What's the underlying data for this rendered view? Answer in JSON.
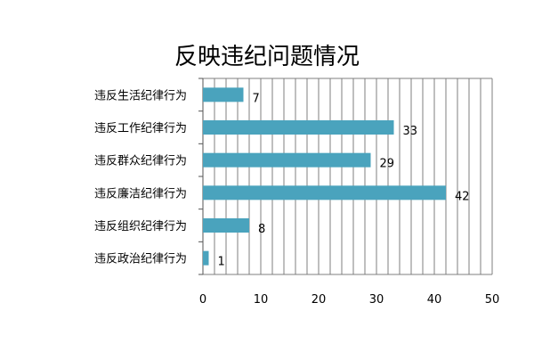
{
  "chart_data": {
    "type": "bar",
    "orientation": "horizontal",
    "title": "反映违纪问题情况",
    "categories": [
      "违反生活纪律行为",
      "违反工作纪律行为",
      "违反群众纪律行为",
      "违反廉洁纪律行为",
      "违反组织纪律行为",
      "违反政治纪律行为"
    ],
    "values": [
      7,
      33,
      29,
      42,
      8,
      1
    ],
    "xlim": [
      0,
      50
    ],
    "x_ticks": [
      0,
      10,
      20,
      30,
      40,
      50
    ],
    "grid": true,
    "legend": "none",
    "bar_color": "#4aa3bd"
  }
}
